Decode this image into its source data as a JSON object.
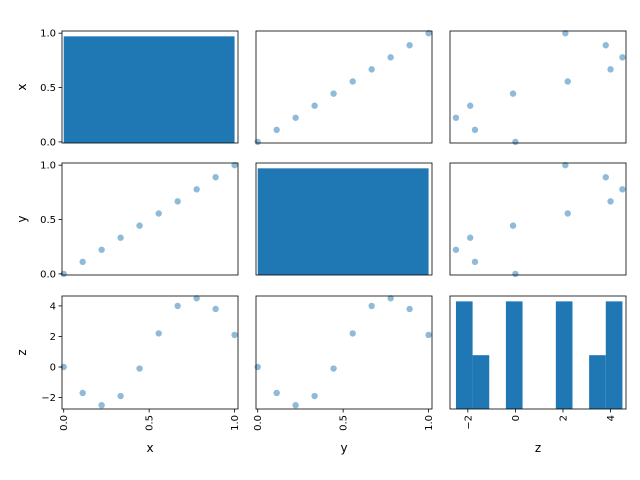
{
  "chart_data": {
    "type": "scatter_matrix",
    "variables": [
      "x",
      "y",
      "z"
    ],
    "diagonal": "histogram",
    "point_color": "#1f77b4",
    "point_alpha": 0.5,
    "bar_color": "#1f77b4",
    "data": {
      "x": [
        0.0,
        0.111,
        0.222,
        0.333,
        0.444,
        0.556,
        0.667,
        0.778,
        0.889,
        1.0
      ],
      "y": [
        0.0,
        0.111,
        0.222,
        0.333,
        0.444,
        0.556,
        0.667,
        0.778,
        0.889,
        1.0
      ],
      "z": [
        0.0,
        -1.7,
        -2.5,
        -1.9,
        -0.1,
        2.2,
        4.0,
        4.5,
        3.8,
        2.1
      ]
    },
    "limits": {
      "x": [
        -0.01,
        1.02
      ],
      "y": [
        -0.01,
        1.02
      ],
      "z": [
        -2.75,
        4.65
      ]
    },
    "histograms": {
      "x": {
        "edges": [
          0.0,
          1.0
        ],
        "counts": [
          10
        ],
        "ylim": [
          0,
          10.5
        ]
      },
      "y": {
        "edges": [
          0.0,
          1.0
        ],
        "counts": [
          10
        ],
        "ylim": [
          0,
          10.5
        ]
      },
      "z": {
        "edges": [
          -2.5,
          -1.8,
          -1.1,
          -0.4,
          0.3,
          1.0,
          1.7,
          2.4,
          3.1,
          3.8,
          4.5
        ],
        "counts": [
          2,
          1,
          0,
          2,
          0,
          0,
          2,
          0,
          1,
          2
        ],
        "ylim": [
          0,
          2.1
        ]
      }
    },
    "ticks": {
      "x": [
        "0.0",
        "0.5",
        "1.0"
      ],
      "y": [
        "0.0",
        "0.5",
        "1.0"
      ],
      "z": [
        "−2",
        "0",
        "2",
        "4"
      ]
    },
    "tick_values": {
      "x": [
        0.0,
        0.5,
        1.0
      ],
      "y": [
        0.0,
        0.5,
        1.0
      ],
      "z": [
        -2,
        0,
        2,
        4
      ]
    }
  }
}
